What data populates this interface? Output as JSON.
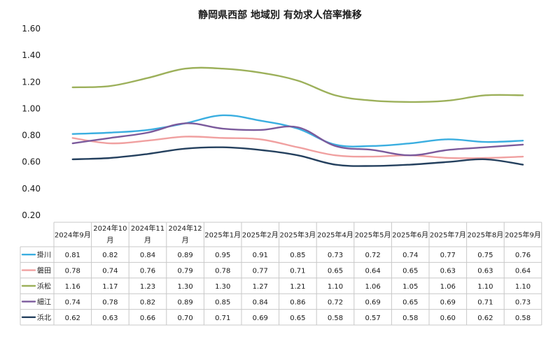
{
  "chart_data": {
    "type": "line",
    "title": "静岡県西部 地域別 有効求人倍率推移",
    "ylim": [
      0.2,
      1.6
    ],
    "yticks": [
      "1.60",
      "1.40",
      "1.20",
      "1.00",
      "0.80",
      "0.60",
      "0.40",
      "0.20"
    ],
    "ytick_values": [
      1.6,
      1.4,
      1.2,
      1.0,
      0.8,
      0.6,
      0.4,
      0.2
    ],
    "categories": [
      [
        "2024年9月"
      ],
      [
        "2024年10",
        "月"
      ],
      [
        "2024年11",
        "月"
      ],
      [
        "2024年12",
        "月"
      ],
      [
        "2025年1月"
      ],
      [
        "2025年2月"
      ],
      [
        "2025年3月"
      ],
      [
        "2025年4月"
      ],
      [
        "2025年5月"
      ],
      [
        "2025年6月"
      ],
      [
        "2025年7月"
      ],
      [
        "2025年8月"
      ],
      [
        "2025年9月"
      ]
    ],
    "grid": false,
    "legend": "data-table-below",
    "series": [
      {
        "name": "掛川",
        "color": "#3aaee0",
        "values": [
          0.81,
          0.82,
          0.84,
          0.89,
          0.95,
          0.91,
          0.85,
          0.73,
          0.72,
          0.74,
          0.77,
          0.75,
          0.76
        ],
        "labels": [
          "0.81",
          "0.82",
          "0.84",
          "0.89",
          "0.95",
          "0.91",
          "0.85",
          "0.73",
          "0.72",
          "0.74",
          "0.77",
          "0.75",
          "0.76"
        ]
      },
      {
        "name": "磐田",
        "color": "#f0a0a0",
        "values": [
          0.78,
          0.74,
          0.76,
          0.79,
          0.78,
          0.77,
          0.71,
          0.65,
          0.64,
          0.65,
          0.63,
          0.63,
          0.64
        ],
        "labels": [
          "0.78",
          "0.74",
          "0.76",
          "0.79",
          "0.78",
          "0.77",
          "0.71",
          "0.65",
          "0.64",
          "0.65",
          "0.63",
          "0.63",
          "0.64"
        ]
      },
      {
        "name": "浜松",
        "color": "#9cb05a",
        "values": [
          1.16,
          1.17,
          1.23,
          1.3,
          1.3,
          1.27,
          1.21,
          1.1,
          1.06,
          1.05,
          1.06,
          1.1,
          1.1
        ],
        "labels": [
          "1.16",
          "1.17",
          "1.23",
          "1.30",
          "1.30",
          "1.27",
          "1.21",
          "1.10",
          "1.06",
          "1.05",
          "1.06",
          "1.10",
          "1.10"
        ]
      },
      {
        "name": "細江",
        "color": "#7b5a9c",
        "values": [
          0.74,
          0.78,
          0.82,
          0.89,
          0.85,
          0.84,
          0.86,
          0.72,
          0.69,
          0.65,
          0.69,
          0.71,
          0.73
        ],
        "labels": [
          "0.74",
          "0.78",
          "0.82",
          "0.89",
          "0.85",
          "0.84",
          "0.86",
          "0.72",
          "0.69",
          "0.65",
          "0.69",
          "0.71",
          "0.73"
        ]
      },
      {
        "name": "浜北",
        "color": "#24405e",
        "values": [
          0.62,
          0.63,
          0.66,
          0.7,
          0.71,
          0.69,
          0.65,
          0.58,
          0.57,
          0.58,
          0.6,
          0.62,
          0.58
        ],
        "labels": [
          "0.62",
          "0.63",
          "0.66",
          "0.70",
          "0.71",
          "0.69",
          "0.65",
          "0.58",
          "0.57",
          "0.58",
          "0.60",
          "0.62",
          "0.58"
        ]
      }
    ]
  }
}
